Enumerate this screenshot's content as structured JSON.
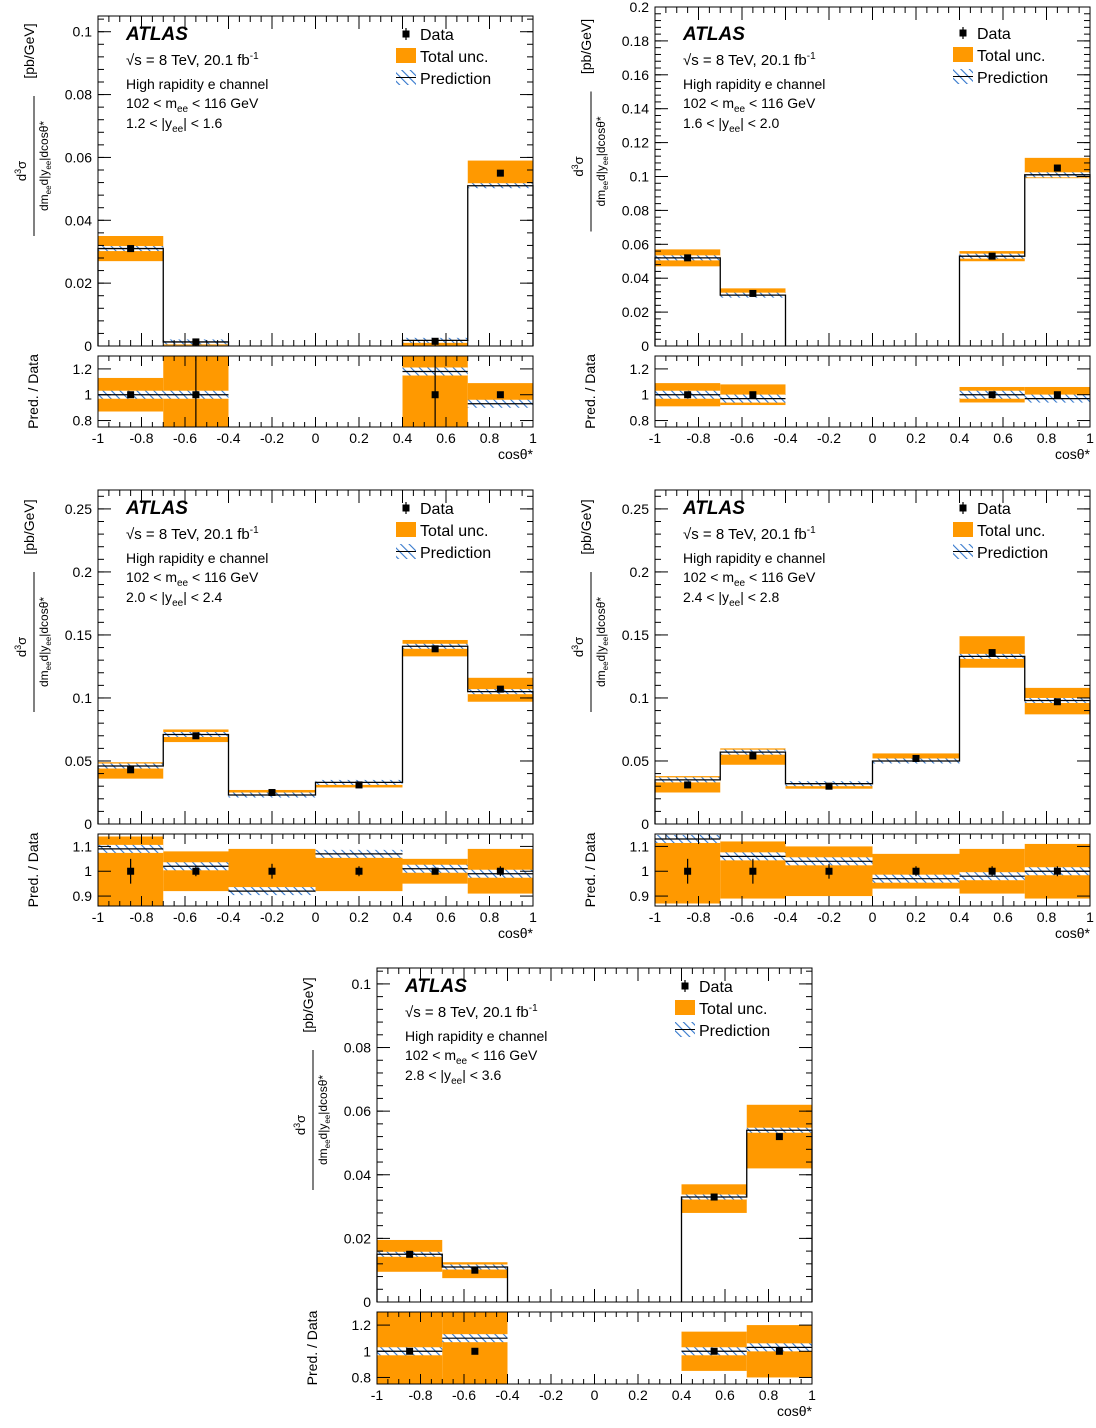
{
  "figure": {
    "experiment": "ATLAS",
    "energy_label": "√s = 8 TeV, 20.1 fb",
    "energy_sup": "-1",
    "channel": "High rapidity e channel",
    "mass_label_pre": "102 < m",
    "mass_label_sub": "ee",
    "mass_label_post": " < 116 GeV",
    "legend": {
      "data": "Data",
      "total_unc": "Total unc.",
      "prediction": "Prediction"
    },
    "ylabel": {
      "num": "d",
      "num_sup": "3",
      "num_sigma": "σ",
      "den": "dm",
      "den_sub1": "ee",
      "den_mid": "d|y",
      "den_sub2": "ee",
      "den_end": "|dcosθ*",
      "unit": "[pb/GeV]"
    },
    "ratio_ylabel": "Pred. / Data",
    "xlabel": "cosθ*",
    "colors": {
      "total_unc": "#ff9900",
      "prediction_hatch": "#3377cc",
      "data": "#000000"
    }
  },
  "chart_data": [
    {
      "type": "bar",
      "yee_label_pre": "1.2 < |y",
      "yee_label_sub": "ee",
      "yee_label_post": "| < 1.6",
      "bins": [
        [
          -1,
          -0.7
        ],
        [
          -0.7,
          -0.4
        ],
        [
          0.4,
          0.7
        ],
        [
          0.7,
          1
        ]
      ],
      "x": [
        -0.85,
        -0.55,
        0.55,
        0.85
      ],
      "data": [
        0.031,
        0.0013,
        0.0015,
        0.055
      ],
      "data_err": [
        0.0005,
        0.0002,
        0.0002,
        0.0008
      ],
      "unc_low": [
        0.027,
        0.0002,
        0.0001,
        0.051
      ],
      "unc_high": [
        0.035,
        0.002,
        0.002,
        0.059
      ],
      "prediction": [
        0.031,
        0.0013,
        0.0018,
        0.051
      ],
      "ratio": [
        1.0,
        1.0,
        1.18,
        0.93
      ],
      "ratio_unc_low": [
        0.87,
        0.0,
        0.0,
        0.91
      ],
      "ratio_unc_high": [
        1.13,
        0.0,
        0.0,
        1.09
      ],
      "ratio_err": [
        0.02,
        0.3,
        0.3,
        0.02
      ],
      "ylim": [
        0,
        0.105
      ],
      "yticks": [
        "0",
        "0.02",
        "0.04",
        "0.06",
        "0.08",
        "0.1"
      ],
      "ytick_values": [
        0,
        0.02,
        0.04,
        0.06,
        0.08,
        0.1
      ],
      "ratio_ylim": [
        0.75,
        1.3
      ],
      "ratio_yticks": [
        "0.8",
        "1",
        "1.2"
      ],
      "ratio_ytick_values": [
        0.8,
        1.0,
        1.2
      ],
      "xlim": [
        -1,
        1
      ],
      "xticks": [
        "-1",
        "-0.8",
        "-0.6",
        "-0.4",
        "-0.2",
        "0",
        "0.2",
        "0.4",
        "0.6",
        "0.8",
        "1"
      ]
    },
    {
      "type": "bar",
      "yee_label_pre": "1.6 < |y",
      "yee_label_sub": "ee",
      "yee_label_post": "| < 2.0",
      "bins": [
        [
          -1,
          -0.7
        ],
        [
          -0.7,
          -0.4
        ],
        [
          0.4,
          0.7
        ],
        [
          0.7,
          1
        ]
      ],
      "x": [
        -0.85,
        -0.55,
        0.55,
        0.85
      ],
      "data": [
        0.052,
        0.031,
        0.053,
        0.105
      ],
      "data_err": [
        0.0008,
        0.0006,
        0.0008,
        0.0012
      ],
      "unc_low": [
        0.047,
        0.029,
        0.05,
        0.099
      ],
      "unc_high": [
        0.057,
        0.034,
        0.056,
        0.111
      ],
      "prediction": [
        0.052,
        0.03,
        0.053,
        0.101
      ],
      "ratio": [
        1.0,
        0.97,
        1.0,
        0.97
      ],
      "ratio_unc_low": [
        0.91,
        0.92,
        0.94,
        0.94
      ],
      "ratio_unc_high": [
        1.09,
        1.08,
        1.06,
        1.06
      ],
      "ratio_err": [
        0.02,
        0.02,
        0.02,
        0.02
      ],
      "ylim": [
        0,
        0.2
      ],
      "yticks": [
        "0",
        "0.02",
        "0.04",
        "0.06",
        "0.08",
        "0.1",
        "0.12",
        "0.14",
        "0.16",
        "0.18",
        "0.2"
      ],
      "ytick_values": [
        0,
        0.02,
        0.04,
        0.06,
        0.08,
        0.1,
        0.12,
        0.14,
        0.16,
        0.18,
        0.2
      ],
      "ratio_ylim": [
        0.75,
        1.3
      ],
      "ratio_yticks": [
        "0.8",
        "1",
        "1.2"
      ],
      "ratio_ytick_values": [
        0.8,
        1.0,
        1.2
      ],
      "xlim": [
        -1,
        1
      ],
      "xticks": [
        "-1",
        "-0.8",
        "-0.6",
        "-0.4",
        "-0.2",
        "0",
        "0.2",
        "0.4",
        "0.6",
        "0.8",
        "1"
      ]
    },
    {
      "type": "bar",
      "yee_label_pre": "2.0 < |y",
      "yee_label_sub": "ee",
      "yee_label_post": "| < 2.4",
      "bins": [
        [
          -1,
          -0.7
        ],
        [
          -0.7,
          -0.4
        ],
        [
          -0.4,
          0
        ],
        [
          0,
          0.4
        ],
        [
          0.4,
          0.7
        ],
        [
          0.7,
          1
        ]
      ],
      "x": [
        -0.85,
        -0.55,
        -0.2,
        0.2,
        0.55,
        0.85
      ],
      "data": [
        0.043,
        0.07,
        0.025,
        0.031,
        0.139,
        0.107
      ],
      "data_err": [
        0.002,
        0.0015,
        0.0008,
        0.001,
        0.0015,
        0.0015
      ],
      "unc_low": [
        0.036,
        0.065,
        0.023,
        0.029,
        0.133,
        0.097
      ],
      "unc_high": [
        0.049,
        0.075,
        0.027,
        0.033,
        0.146,
        0.116
      ],
      "prediction": [
        0.046,
        0.071,
        0.023,
        0.033,
        0.141,
        0.105
      ],
      "ratio": [
        1.09,
        1.02,
        0.92,
        1.07,
        1.01,
        0.99
      ],
      "ratio_unc_low": [
        0.86,
        0.92,
        0.91,
        0.92,
        0.95,
        0.91
      ],
      "ratio_unc_high": [
        1.14,
        1.08,
        1.09,
        1.08,
        1.05,
        1.09
      ],
      "ratio_err": [
        0.05,
        0.02,
        0.03,
        0.02,
        0.01,
        0.02
      ],
      "ylim": [
        0,
        0.265
      ],
      "yticks": [
        "0",
        "0.05",
        "0.1",
        "0.15",
        "0.2",
        "0.25"
      ],
      "ytick_values": [
        0,
        0.05,
        0.1,
        0.15,
        0.2,
        0.25
      ],
      "ratio_ylim": [
        0.86,
        1.15
      ],
      "ratio_yticks": [
        "0.9",
        "1",
        "1.1"
      ],
      "ratio_ytick_values": [
        0.9,
        1.0,
        1.1
      ],
      "xlim": [
        -1,
        1
      ],
      "xticks": [
        "-1",
        "-0.8",
        "-0.6",
        "-0.4",
        "-0.2",
        "0",
        "0.2",
        "0.4",
        "0.6",
        "0.8",
        "1"
      ]
    },
    {
      "type": "bar",
      "yee_label_pre": "2.4 < |y",
      "yee_label_sub": "ee",
      "yee_label_post": "| < 2.8",
      "bins": [
        [
          -1,
          -0.7
        ],
        [
          -0.7,
          -0.4
        ],
        [
          -0.4,
          0
        ],
        [
          0,
          0.4
        ],
        [
          0.4,
          0.7
        ],
        [
          0.7,
          1
        ]
      ],
      "x": [
        -0.85,
        -0.55,
        -0.2,
        0.2,
        0.55,
        0.85
      ],
      "data": [
        0.031,
        0.054,
        0.03,
        0.052,
        0.136,
        0.097
      ],
      "data_err": [
        0.002,
        0.0015,
        0.001,
        0.001,
        0.002,
        0.0015
      ],
      "unc_low": [
        0.025,
        0.047,
        0.028,
        0.049,
        0.124,
        0.087
      ],
      "unc_high": [
        0.038,
        0.06,
        0.032,
        0.056,
        0.149,
        0.108
      ],
      "prediction": [
        0.035,
        0.057,
        0.032,
        0.05,
        0.133,
        0.098
      ],
      "ratio": [
        1.13,
        1.06,
        1.04,
        0.97,
        0.98,
        1.0
      ],
      "ratio_unc_low": [
        0.87,
        0.89,
        0.9,
        0.93,
        0.91,
        0.89
      ],
      "ratio_unc_high": [
        1.13,
        1.12,
        1.1,
        1.07,
        1.09,
        1.11
      ],
      "ratio_err": [
        0.05,
        0.05,
        0.03,
        0.02,
        0.02,
        0.02
      ],
      "ylim": [
        0,
        0.265
      ],
      "yticks": [
        "0",
        "0.05",
        "0.1",
        "0.15",
        "0.2",
        "0.25"
      ],
      "ytick_values": [
        0,
        0.05,
        0.1,
        0.15,
        0.2,
        0.25
      ],
      "ratio_ylim": [
        0.86,
        1.15
      ],
      "ratio_yticks": [
        "0.9",
        "1",
        "1.1"
      ],
      "ratio_ytick_values": [
        0.9,
        1.0,
        1.1
      ],
      "xlim": [
        -1,
        1
      ],
      "xticks": [
        "-1",
        "-0.8",
        "-0.6",
        "-0.4",
        "-0.2",
        "0",
        "0.2",
        "0.4",
        "0.6",
        "0.8",
        "1"
      ]
    },
    {
      "type": "bar",
      "yee_label_pre": "2.8 < |y",
      "yee_label_sub": "ee",
      "yee_label_post": "| < 3.6",
      "bins": [
        [
          -1,
          -0.7
        ],
        [
          -0.7,
          -0.4
        ],
        [
          0.4,
          0.7
        ],
        [
          0.7,
          1
        ]
      ],
      "x": [
        -0.85,
        -0.55,
        0.55,
        0.85
      ],
      "data": [
        0.015,
        0.01,
        0.033,
        0.052
      ],
      "data_err": [
        0.0005,
        0.0004,
        0.0008,
        0.001
      ],
      "unc_low": [
        0.0095,
        0.0075,
        0.028,
        0.042
      ],
      "unc_high": [
        0.0195,
        0.0125,
        0.037,
        0.062
      ],
      "prediction": [
        0.015,
        0.011,
        0.033,
        0.054
      ],
      "ratio": [
        1.0,
        1.1,
        1.0,
        1.03
      ],
      "ratio_unc_low": [
        0.75,
        0.75,
        0.85,
        0.8
      ],
      "ratio_unc_high": [
        1.3,
        1.3,
        1.15,
        1.2
      ],
      "ratio_err": [
        0.02,
        0.02,
        0.02,
        0.02
      ],
      "ylim": [
        0,
        0.105
      ],
      "yticks": [
        "0",
        "0.02",
        "0.04",
        "0.06",
        "0.08",
        "0.1"
      ],
      "ytick_values": [
        0,
        0.02,
        0.04,
        0.06,
        0.08,
        0.1
      ],
      "ratio_ylim": [
        0.75,
        1.3
      ],
      "ratio_yticks": [
        "0.8",
        "1",
        "1.2"
      ],
      "ratio_ytick_values": [
        0.8,
        1.0,
        1.2
      ],
      "xlim": [
        -1,
        1
      ],
      "xticks": [
        "-1",
        "-0.8",
        "-0.6",
        "-0.4",
        "-0.2",
        "0",
        "0.2",
        "0.4",
        "0.6",
        "0.8",
        "1"
      ]
    }
  ]
}
